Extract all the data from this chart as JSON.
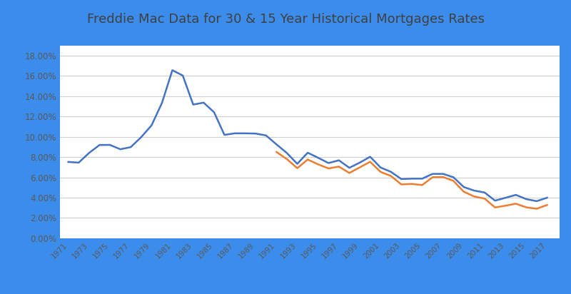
{
  "title": "Freddie Mac Data for 30 & 15 Year Historical Mortgages Rates",
  "years_30": [
    1971,
    1972,
    1973,
    1974,
    1975,
    1976,
    1977,
    1978,
    1979,
    1980,
    1981,
    1982,
    1983,
    1984,
    1985,
    1986,
    1987,
    1988,
    1989,
    1990,
    1991,
    1992,
    1993,
    1994,
    1995,
    1996,
    1997,
    1998,
    1999,
    2000,
    2001,
    2002,
    2003,
    2004,
    2005,
    2006,
    2007,
    2008,
    2009,
    2010,
    2011,
    2012,
    2013,
    2014,
    2015,
    2016,
    2017
  ],
  "rates_30": [
    0.0752,
    0.0745,
    0.0841,
    0.0919,
    0.092,
    0.0877,
    0.0898,
    0.0996,
    0.1113,
    0.1334,
    0.1657,
    0.1604,
    0.1318,
    0.1337,
    0.1243,
    0.1019,
    0.1034,
    0.1034,
    0.1032,
    0.1013,
    0.0925,
    0.084,
    0.0733,
    0.0843,
    0.0793,
    0.0741,
    0.0768,
    0.0694,
    0.0745,
    0.0803,
    0.0697,
    0.0654,
    0.0583,
    0.0587,
    0.0587,
    0.0634,
    0.0634,
    0.0601,
    0.0504,
    0.0469,
    0.045,
    0.037,
    0.0398,
    0.0427,
    0.0385,
    0.0365,
    0.0399
  ],
  "years_15": [
    1991,
    1992,
    1993,
    1994,
    1995,
    1996,
    1997,
    1998,
    1999,
    2000,
    2001,
    2002,
    2003,
    2004,
    2005,
    2006,
    2007,
    2008,
    2009,
    2010,
    2011,
    2012,
    2013,
    2014,
    2015,
    2016,
    2017
  ],
  "rates_15": [
    0.085,
    0.078,
    0.069,
    0.0776,
    0.0728,
    0.0688,
    0.0706,
    0.0643,
    0.0698,
    0.0753,
    0.0654,
    0.0613,
    0.053,
    0.0535,
    0.0524,
    0.0601,
    0.0603,
    0.0565,
    0.0458,
    0.0411,
    0.039,
    0.0303,
    0.032,
    0.034,
    0.0304,
    0.029,
    0.0327
  ],
  "color_30": "#4472C4",
  "color_15": "#ED7D31",
  "ylim": [
    0.0,
    0.19
  ],
  "yticks": [
    0.0,
    0.02,
    0.04,
    0.06,
    0.08,
    0.1,
    0.12,
    0.14,
    0.16,
    0.18
  ],
  "background_color": "#FFFFFF",
  "outer_background": "#3C8DEB",
  "grid_color": "#D0D0D0",
  "title_fontsize": 13,
  "tick_label_color": "#595959",
  "line_width": 1.8
}
